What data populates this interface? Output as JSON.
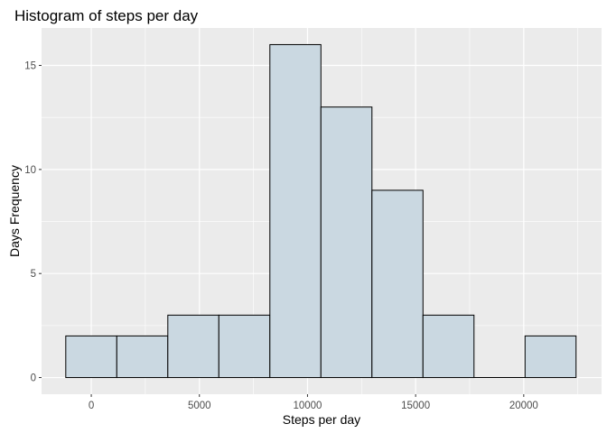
{
  "chart_data": {
    "type": "bar",
    "title": "Histogram of steps per day",
    "xlabel": "Steps per day",
    "ylabel": "Days Frequency",
    "xlim": [
      -2300,
      23600
    ],
    "ylim": [
      -0.8,
      16.8
    ],
    "x_ticks": [
      0,
      5000,
      10000,
      15000,
      20000
    ],
    "x_tick_labels": [
      "0",
      "5000",
      "10000",
      "15000",
      "20000"
    ],
    "y_ticks": [
      0,
      5,
      10,
      15
    ],
    "y_tick_labels": [
      "0",
      "5",
      "10",
      "15"
    ],
    "bins": [
      {
        "x0": -1180,
        "x1": 1180,
        "count": 2
      },
      {
        "x0": 1180,
        "x1": 3540,
        "count": 2
      },
      {
        "x0": 3540,
        "x1": 5900,
        "count": 3
      },
      {
        "x0": 5900,
        "x1": 8260,
        "count": 3
      },
      {
        "x0": 8260,
        "x1": 10620,
        "count": 16
      },
      {
        "x0": 10620,
        "x1": 12980,
        "count": 13
      },
      {
        "x0": 12980,
        "x1": 15340,
        "count": 9
      },
      {
        "x0": 15340,
        "x1": 17700,
        "count": 3
      },
      {
        "x0": 17700,
        "x1": 20060,
        "count": 0
      },
      {
        "x0": 20060,
        "x1": 22420,
        "count": 2
      }
    ],
    "grid": true,
    "colors": {
      "panel": "#ebebeb",
      "grid": "#ffffff",
      "bar_fill": "#cad8e1",
      "bar_stroke": "#000000"
    }
  }
}
